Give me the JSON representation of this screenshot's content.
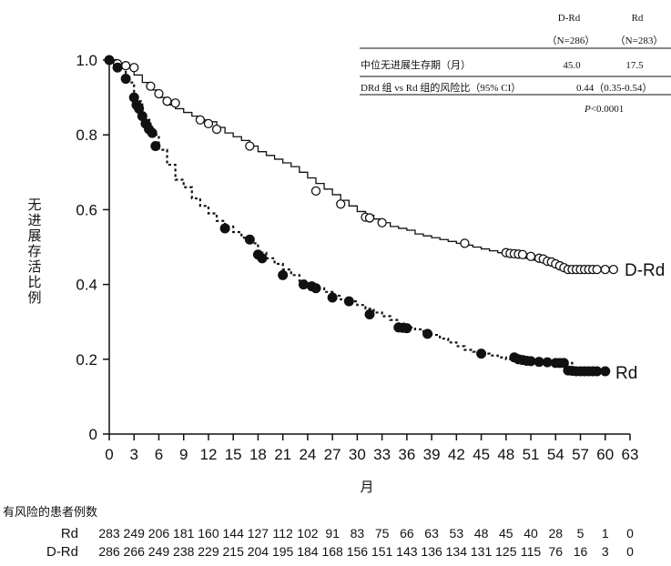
{
  "chart_data": {
    "type": "line",
    "ylabel": "无进展存活比例",
    "xlabel": "月",
    "xlim": [
      0,
      63
    ],
    "ylim": [
      0,
      1.0
    ],
    "x_ticks": [
      0,
      3,
      6,
      9,
      12,
      15,
      18,
      21,
      24,
      27,
      30,
      33,
      36,
      39,
      42,
      45,
      48,
      51,
      54,
      57,
      60,
      63
    ],
    "y_ticks": [
      0,
      0.2,
      0.4,
      0.6,
      0.8,
      1.0
    ],
    "y_tick_labels": [
      "0",
      "0.2",
      "0.4",
      "0.6",
      "0.8",
      "1.0"
    ],
    "series": [
      {
        "name": "D-Rd",
        "style": "solid",
        "marker": "open-circle",
        "color": "#111111",
        "x": [
          0,
          1,
          2,
          3,
          4,
          5,
          6,
          7,
          8,
          9,
          10,
          11,
          12,
          13,
          14,
          15,
          16,
          17,
          18,
          19,
          20,
          21,
          22,
          23,
          24,
          25,
          26,
          27,
          28,
          29,
          30,
          31,
          32,
          33,
          34,
          35,
          36,
          37,
          38,
          39,
          40,
          41,
          42,
          43,
          44,
          45,
          46,
          47,
          48,
          49,
          50,
          51,
          52,
          53,
          54,
          55,
          56,
          57,
          58,
          59,
          60,
          61
        ],
        "y": [
          1.0,
          0.99,
          0.985,
          0.96,
          0.94,
          0.92,
          0.9,
          0.88,
          0.87,
          0.86,
          0.85,
          0.84,
          0.835,
          0.82,
          0.805,
          0.795,
          0.785,
          0.77,
          0.755,
          0.745,
          0.735,
          0.725,
          0.715,
          0.7,
          0.685,
          0.67,
          0.655,
          0.64,
          0.625,
          0.61,
          0.595,
          0.585,
          0.575,
          0.565,
          0.555,
          0.55,
          0.545,
          0.535,
          0.53,
          0.525,
          0.52,
          0.515,
          0.51,
          0.505,
          0.5,
          0.495,
          0.49,
          0.485,
          0.48,
          0.475,
          0.47,
          0.465,
          0.46,
          0.455,
          0.445,
          0.44,
          0.44,
          0.44,
          0.44,
          0.44,
          0.44,
          0.44
        ],
        "censor_x": [
          1,
          2,
          3,
          5,
          6,
          7,
          8,
          11,
          12,
          13,
          17,
          25,
          28,
          31,
          31.5,
          33,
          43,
          48,
          48.5,
          49,
          49.5,
          50,
          51,
          52,
          52.5,
          53,
          53.5,
          54,
          54.5,
          55,
          55.5,
          56,
          56.5,
          57,
          57.5,
          58,
          58.5,
          59,
          60,
          61
        ],
        "censor_y": [
          0.99,
          0.985,
          0.98,
          0.93,
          0.91,
          0.89,
          0.885,
          0.84,
          0.83,
          0.815,
          0.77,
          0.65,
          0.615,
          0.58,
          0.578,
          0.565,
          0.51,
          0.485,
          0.483,
          0.482,
          0.481,
          0.48,
          0.475,
          0.47,
          0.468,
          0.462,
          0.46,
          0.455,
          0.45,
          0.445,
          0.44,
          0.44,
          0.44,
          0.44,
          0.44,
          0.44,
          0.44,
          0.44,
          0.44,
          0.44
        ]
      },
      {
        "name": "Rd",
        "style": "dashed",
        "marker": "filled-circle",
        "color": "#111111",
        "x": [
          0,
          1,
          2,
          3,
          4,
          5,
          6,
          7,
          8,
          9,
          10,
          11,
          12,
          13,
          14,
          15,
          16,
          17,
          18,
          19,
          20,
          21,
          22,
          23,
          24,
          25,
          26,
          27,
          28,
          29,
          30,
          31,
          32,
          33,
          34,
          35,
          36,
          37,
          38,
          39,
          40,
          41,
          42,
          43,
          44,
          45,
          46,
          47,
          48,
          49,
          50,
          51,
          52,
          53,
          54,
          55,
          56,
          57,
          58,
          59,
          60
        ],
        "y": [
          1.0,
          0.98,
          0.94,
          0.89,
          0.84,
          0.8,
          0.76,
          0.72,
          0.68,
          0.66,
          0.63,
          0.61,
          0.59,
          0.57,
          0.555,
          0.54,
          0.525,
          0.51,
          0.485,
          0.47,
          0.455,
          0.44,
          0.425,
          0.41,
          0.4,
          0.39,
          0.38,
          0.37,
          0.36,
          0.355,
          0.345,
          0.335,
          0.325,
          0.315,
          0.305,
          0.295,
          0.285,
          0.28,
          0.275,
          0.265,
          0.255,
          0.245,
          0.235,
          0.225,
          0.22,
          0.215,
          0.21,
          0.205,
          0.2,
          0.2,
          0.2,
          0.195,
          0.195,
          0.19,
          0.19,
          0.19,
          0.17,
          0.168,
          0.168,
          0.168,
          0.168
        ],
        "censor_x": [
          0,
          1,
          2,
          3,
          3.3,
          3.6,
          4,
          4.4,
          4.8,
          5.2,
          5.6,
          14,
          17,
          18,
          18.5,
          21,
          23.5,
          24.5,
          25,
          27,
          29,
          31.5,
          35,
          35.5,
          36,
          38.5,
          45,
          49,
          49.5,
          50,
          50.5,
          51,
          52,
          53,
          54,
          54.5,
          55,
          55.5,
          56,
          56.5,
          57,
          57.5,
          58,
          58.5,
          59,
          60
        ],
        "censor_y": [
          1.0,
          0.98,
          0.95,
          0.9,
          0.88,
          0.87,
          0.85,
          0.83,
          0.815,
          0.805,
          0.77,
          0.55,
          0.52,
          0.48,
          0.47,
          0.425,
          0.4,
          0.395,
          0.39,
          0.365,
          0.355,
          0.32,
          0.285,
          0.284,
          0.283,
          0.268,
          0.215,
          0.205,
          0.2,
          0.198,
          0.196,
          0.195,
          0.193,
          0.192,
          0.19,
          0.19,
          0.19,
          0.17,
          0.169,
          0.168,
          0.168,
          0.168,
          0.168,
          0.168,
          0.168,
          0.168
        ]
      }
    ]
  },
  "summary_table": {
    "col1_header": "D-Rd",
    "col2_header": "Rd",
    "col1_n": "（N=286）",
    "col2_n": "（N=283）",
    "row1_label": "中位无进展生存期（月）",
    "row1_col1": "45.0",
    "row1_col2": "17.5",
    "row2_label": "DRd 组 vs Rd 组的风险比（95% CI）",
    "row2_value": "0.44（0.35-0.54）",
    "pvalue_prefix": "P",
    "pvalue_rest": "<0.0001"
  },
  "risk_table": {
    "title": "有风险的患者例数",
    "rows": [
      {
        "name": "Rd",
        "values": [
          "283",
          "249",
          "206",
          "181",
          "160",
          "144",
          "127",
          "112",
          "102",
          "91",
          "83",
          "75",
          "66",
          "63",
          "53",
          "48",
          "45",
          "40",
          "28",
          "5",
          "1",
          "0"
        ]
      },
      {
        "name": "D-Rd",
        "values": [
          "286",
          "266",
          "249",
          "238",
          "229",
          "215",
          "204",
          "195",
          "184",
          "168",
          "156",
          "151",
          "143",
          "136",
          "134",
          "131",
          "125",
          "115",
          "76",
          "16",
          "3",
          "0"
        ]
      }
    ]
  }
}
